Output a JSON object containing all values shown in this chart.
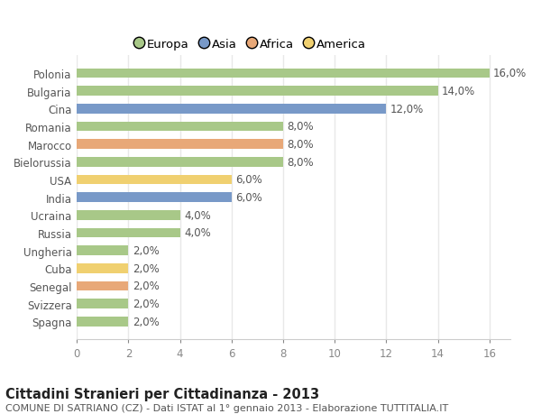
{
  "categories": [
    "Spagna",
    "Svizzera",
    "Senegal",
    "Cuba",
    "Ungheria",
    "Russia",
    "Ucraina",
    "India",
    "USA",
    "Bielorussia",
    "Marocco",
    "Romania",
    "Cina",
    "Bulgaria",
    "Polonia"
  ],
  "values": [
    2.0,
    2.0,
    2.0,
    2.0,
    2.0,
    4.0,
    4.0,
    6.0,
    6.0,
    8.0,
    8.0,
    8.0,
    12.0,
    14.0,
    16.0
  ],
  "continents": [
    "Europa",
    "Europa",
    "Africa",
    "America",
    "Europa",
    "Europa",
    "Europa",
    "Asia",
    "America",
    "Europa",
    "Africa",
    "Europa",
    "Asia",
    "Europa",
    "Europa"
  ],
  "continent_colors": {
    "Europa": "#a8c888",
    "Asia": "#7899c8",
    "Africa": "#e8a878",
    "America": "#f0d070"
  },
  "legend_order": [
    "Europa",
    "Asia",
    "Africa",
    "America"
  ],
  "title": "Cittadini Stranieri per Cittadinanza - 2013",
  "subtitle": "COMUNE DI SATRIANO (CZ) - Dati ISTAT al 1° gennaio 2013 - Elaborazione TUTTITALIA.IT",
  "xlim_max": 16,
  "xticks": [
    0,
    2,
    4,
    6,
    8,
    10,
    12,
    14,
    16
  ],
  "background_color": "#ffffff",
  "plot_bg_color": "#ffffff",
  "grid_color": "#e8e8e8",
  "bar_height": 0.55,
  "label_fontsize": 8.5,
  "title_fontsize": 10.5,
  "subtitle_fontsize": 8,
  "tick_fontsize": 8.5,
  "legend_fontsize": 9.5
}
